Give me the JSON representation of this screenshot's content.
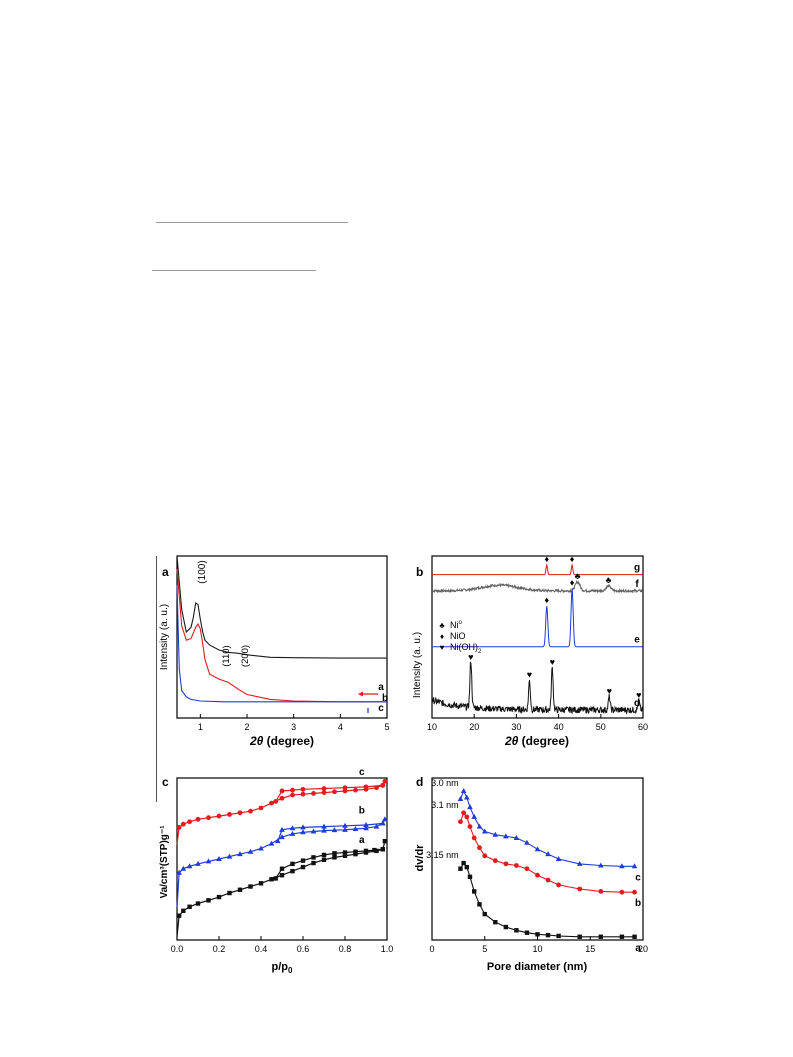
{
  "chart_data": [
    {
      "panel": "a",
      "type": "line",
      "xlabel_var": "2θ",
      "xlabel_unit": "(degree)",
      "ylabel": "Intensity (a. u.)",
      "xlim": [
        0.5,
        5
      ],
      "ylim": [
        0,
        10
      ],
      "xticks": [
        1,
        2,
        3,
        4,
        5
      ],
      "peak_labels": [
        "(100)",
        "(110)",
        "(200)"
      ],
      "series": [
        {
          "name": "a",
          "color": "#1a1a1a",
          "x": [
            0.5,
            0.6,
            0.7,
            0.8,
            0.85,
            0.9,
            0.95,
            1.0,
            1.05,
            1.1,
            1.2,
            1.4,
            1.6,
            1.8,
            2.0,
            2.5,
            3,
            4,
            5
          ],
          "y": [
            10.0,
            6.7,
            5.3,
            5.6,
            6.2,
            7.1,
            7.0,
            6.1,
            5.3,
            4.8,
            4.5,
            4.2,
            4.05,
            4.0,
            3.9,
            3.75,
            3.72,
            3.7,
            3.7
          ]
        },
        {
          "name": "b",
          "color": "#e41a1c",
          "x": [
            0.5,
            0.6,
            0.7,
            0.8,
            0.9,
            0.95,
            1.0,
            1.05,
            1.1,
            1.2,
            1.4,
            1.6,
            1.8,
            2.0,
            2.5,
            3,
            4,
            5
          ],
          "y": [
            9.2,
            5.7,
            4.8,
            4.9,
            5.6,
            5.8,
            5.5,
            4.6,
            3.6,
            2.7,
            2.4,
            2.2,
            1.8,
            1.45,
            1.15,
            1.05,
            1.0,
            1.0
          ]
        },
        {
          "name": "c",
          "color": "#1f3bdc",
          "x": [
            0.5,
            0.55,
            0.6,
            0.7,
            0.8,
            1.0,
            1.5,
            2,
            3,
            4,
            5
          ],
          "y": [
            8.2,
            3.0,
            1.7,
            1.3,
            1.15,
            1.05,
            1.0,
            1.0,
            1.0,
            1.0,
            1.0
          ]
        }
      ]
    },
    {
      "panel": "b",
      "type": "line",
      "xlabel_var": "2θ",
      "xlabel_unit": "(degree)",
      "ylabel": "Intensity (a. u.)",
      "xlim": [
        10,
        60
      ],
      "ylim": [
        0,
        10
      ],
      "xticks": [
        10,
        20,
        30,
        40,
        50,
        60
      ],
      "legend": [
        {
          "symbol": "♣",
          "label": "Ni",
          "sup": "o"
        },
        {
          "symbol": "♦",
          "label": "NiO"
        },
        {
          "symbol": "♥",
          "label": "Ni(OH)",
          "sub": "2"
        }
      ],
      "series": [
        {
          "name": "g",
          "color": "#e41a1c",
          "baseline": 8.85,
          "peaks": [
            [
              37.2,
              0.6,
              0.25
            ],
            [
              43.2,
              0.6,
              0.25
            ],
            [
              62.8,
              0.4,
              0.25
            ]
          ],
          "markers": [
            [
              37.2,
              "♦"
            ],
            [
              43.2,
              "♦"
            ]
          ]
        },
        {
          "name": "f",
          "color": "#606060",
          "baseline": 7.85,
          "hump": [
            26,
            0.35,
            6
          ],
          "peaks": [
            [
              44.5,
              0.55,
              0.8
            ],
            [
              51.8,
              0.3,
              0.8
            ]
          ],
          "markers": [
            [
              44.5,
              "♣"
            ],
            [
              51.8,
              "♣"
            ]
          ]
        },
        {
          "name": "e",
          "color": "#1f3bdc",
          "baseline": 4.4,
          "peaks": [
            [
              37.2,
              2.5,
              0.35
            ],
            [
              43.2,
              3.6,
              0.35
            ],
            [
              62.8,
              1.0,
              0.35
            ]
          ],
          "markers": [
            [
              37.2,
              "♦"
            ],
            [
              43.2,
              "♦"
            ]
          ]
        },
        {
          "name": "d",
          "color": "#111111",
          "baseline": 0.5,
          "noisy": true,
          "peaks": [
            [
              19.2,
              2.9,
              0.3
            ],
            [
              33.1,
              1.8,
              0.3
            ],
            [
              38.5,
              2.6,
              0.3
            ],
            [
              52.0,
              0.8,
              0.3
            ],
            [
              59.0,
              0.55,
              0.3
            ]
          ],
          "markers": [
            [
              19.2,
              "♥"
            ],
            [
              33.1,
              "♥"
            ],
            [
              38.5,
              "♥"
            ],
            [
              52.0,
              "♥"
            ],
            [
              59.0,
              "♥"
            ]
          ]
        }
      ]
    },
    {
      "panel": "c",
      "type": "line",
      "xlabel": "p/p",
      "xlabel_sub": "0",
      "ylabel": "Va/cm³(STP)g⁻¹",
      "xlim": [
        0,
        1.0
      ],
      "ylim": [
        0,
        10
      ],
      "xticks": [
        0.0,
        0.2,
        0.4,
        0.6,
        0.8,
        1.0
      ],
      "series": [
        {
          "name": "a",
          "color": "#111111",
          "marker": "square",
          "x": [
            0.0,
            0.01,
            0.03,
            0.06,
            0.1,
            0.15,
            0.2,
            0.25,
            0.3,
            0.35,
            0.4,
            0.45,
            0.5,
            0.55,
            0.6,
            0.65,
            0.7,
            0.75,
            0.8,
            0.85,
            0.9,
            0.95,
            0.98,
            0.99
          ],
          "y": [
            0.2,
            1.5,
            1.8,
            2.05,
            2.25,
            2.45,
            2.65,
            2.9,
            3.1,
            3.3,
            3.5,
            3.75,
            4.0,
            4.25,
            4.5,
            4.75,
            4.95,
            5.1,
            5.2,
            5.3,
            5.4,
            5.5,
            5.6,
            6.1
          ],
          "desorb_x": [
            0.98,
            0.94,
            0.9,
            0.85,
            0.8,
            0.75,
            0.7,
            0.65,
            0.6,
            0.55,
            0.5,
            0.47
          ],
          "desorb_y": [
            5.6,
            5.55,
            5.5,
            5.45,
            5.4,
            5.35,
            5.25,
            5.1,
            4.9,
            4.7,
            4.4,
            3.8
          ]
        },
        {
          "name": "b",
          "color": "#1f3bdc",
          "marker": "triangle",
          "x": [
            0.0,
            0.01,
            0.03,
            0.06,
            0.1,
            0.15,
            0.2,
            0.25,
            0.3,
            0.35,
            0.4,
            0.45,
            0.5,
            0.55,
            0.6,
            0.65,
            0.7,
            0.75,
            0.8,
            0.85,
            0.9,
            0.95,
            0.98,
            0.99
          ],
          "y": [
            2.0,
            4.15,
            4.4,
            4.55,
            4.7,
            4.85,
            5.0,
            5.15,
            5.3,
            5.45,
            5.65,
            5.95,
            6.35,
            6.55,
            6.65,
            6.7,
            6.75,
            6.78,
            6.8,
            6.85,
            6.9,
            7.0,
            7.2,
            7.45
          ],
          "desorb_x": [
            0.98,
            0.9,
            0.8,
            0.7,
            0.6,
            0.55,
            0.5,
            0.48
          ],
          "desorb_y": [
            7.2,
            7.1,
            7.05,
            7.0,
            6.95,
            6.9,
            6.8,
            6.1
          ]
        },
        {
          "name": "c",
          "color": "#e41a1c",
          "marker": "circle",
          "x": [
            0.0,
            0.01,
            0.03,
            0.06,
            0.1,
            0.15,
            0.2,
            0.25,
            0.3,
            0.35,
            0.4,
            0.45,
            0.5,
            0.55,
            0.6,
            0.65,
            0.7,
            0.75,
            0.8,
            0.85,
            0.9,
            0.95,
            0.98,
            0.99
          ],
          "y": [
            5.9,
            6.95,
            7.15,
            7.3,
            7.45,
            7.55,
            7.65,
            7.75,
            7.85,
            7.95,
            8.15,
            8.45,
            8.75,
            8.95,
            9.0,
            9.05,
            9.1,
            9.15,
            9.2,
            9.25,
            9.3,
            9.4,
            9.55,
            9.8
          ],
          "desorb_x": [
            0.98,
            0.9,
            0.8,
            0.7,
            0.6,
            0.55,
            0.5,
            0.47
          ],
          "desorb_y": [
            9.55,
            9.45,
            9.4,
            9.35,
            9.3,
            9.25,
            9.2,
            8.55
          ]
        }
      ]
    },
    {
      "panel": "d",
      "type": "line",
      "xlabel": "Pore diameter (nm)",
      "ylabel": "dv/dr",
      "xlim": [
        0,
        20
      ],
      "ylim": [
        0,
        10
      ],
      "xticks": [
        0,
        5,
        10,
        15,
        20
      ],
      "series": [
        {
          "name": "c",
          "color": "#1f3bdc",
          "marker": "triangle",
          "peak_label": "3.0 nm",
          "x": [
            2.7,
            3.0,
            3.3,
            3.6,
            4.0,
            4.5,
            5.0,
            6.0,
            7.0,
            8.0,
            9.0,
            10.0,
            11.0,
            12.0,
            14.0,
            16.0,
            18.0,
            19.2
          ],
          "y": [
            8.7,
            9.2,
            8.8,
            8.2,
            7.6,
            7.0,
            6.7,
            6.5,
            6.4,
            6.3,
            6.0,
            5.6,
            5.3,
            5.0,
            4.7,
            4.6,
            4.55,
            4.55
          ]
        },
        {
          "name": "b",
          "color": "#e41a1c",
          "marker": "circle",
          "peak_label": "3.1 nm",
          "x": [
            2.7,
            3.0,
            3.3,
            3.6,
            4.0,
            4.5,
            5.0,
            6.0,
            7.0,
            8.0,
            9.0,
            10.0,
            11.0,
            12.0,
            14.0,
            16.0,
            18.0,
            19.2
          ],
          "y": [
            7.3,
            7.85,
            7.6,
            7.0,
            6.3,
            5.7,
            5.2,
            4.9,
            4.7,
            4.6,
            4.4,
            4.0,
            3.7,
            3.4,
            3.15,
            3.0,
            2.95,
            2.95
          ]
        },
        {
          "name": "a",
          "color": "#111111",
          "marker": "square",
          "peak_label": "3.15 nm",
          "x": [
            2.7,
            3.0,
            3.3,
            3.6,
            4.0,
            4.5,
            5.0,
            6.0,
            7.0,
            8.0,
            9.0,
            10.0,
            11.0,
            12.0,
            14.0,
            16.0,
            18.0,
            19.2
          ],
          "y": [
            4.4,
            4.75,
            4.5,
            3.9,
            3.0,
            2.2,
            1.6,
            1.1,
            0.8,
            0.6,
            0.45,
            0.35,
            0.3,
            0.25,
            0.2,
            0.2,
            0.2,
            0.2
          ]
        }
      ]
    }
  ]
}
